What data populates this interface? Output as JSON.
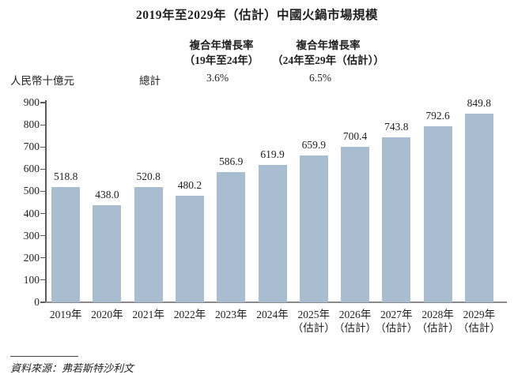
{
  "title": "2019年至2029年（估計）中國火鍋市場規模",
  "unit_label": "人民幣十億元",
  "cagr_table": {
    "row_label": "總計",
    "columns": [
      {
        "header_line1": "複合年增長率",
        "header_line2": "（19年至24年）",
        "value": "3.6%"
      },
      {
        "header_line1": "複合年增長率",
        "header_line2": "（24年至29年（估計））",
        "value": "6.5%"
      }
    ]
  },
  "source": "資料來源：弗若斯特沙利文",
  "colors": {
    "bar": "#a9bdd1",
    "axis": "#5a5a5a",
    "baseline": "#8a8a8a",
    "text": "#1f1f1f"
  },
  "chart_data": {
    "type": "bar",
    "title": "2019年至2029年（估計）中國火鍋市場規模",
    "ylabel": "人民幣十億元",
    "categories": [
      "2019年",
      "2020年",
      "2021年",
      "2022年",
      "2023年",
      "2024年",
      "2025年",
      "2026年",
      "2027年",
      "2028年",
      "2029年"
    ],
    "category_subnotes": [
      "",
      "",
      "",
      "",
      "",
      "",
      "（估計）",
      "（估計）",
      "（估計）",
      "（估計）",
      "（估計）"
    ],
    "values": [
      518.8,
      438.0,
      520.8,
      480.2,
      586.9,
      619.9,
      659.9,
      700.4,
      743.8,
      792.6,
      849.8
    ],
    "value_labels": [
      "518.8",
      "438.0",
      "520.8",
      "480.2",
      "586.9",
      "619.9",
      "659.9",
      "700.4",
      "743.8",
      "792.6",
      "849.8"
    ],
    "ylim": [
      0,
      900
    ],
    "yticks": [
      0,
      100,
      200,
      300,
      400,
      500,
      600,
      700,
      800,
      900
    ],
    "grid": false,
    "legend": false,
    "annotations": {
      "cagr_2019_2024": "3.6%",
      "cagr_2024_2029_estimated": "6.5%"
    }
  }
}
